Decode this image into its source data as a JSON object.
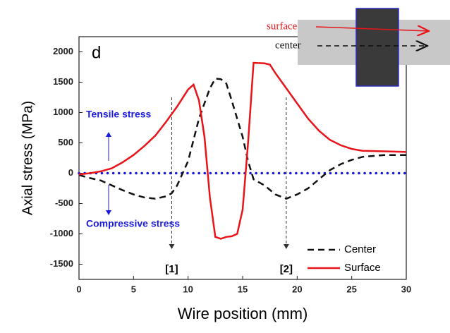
{
  "chart_data": {
    "type": "line",
    "panel_label": "d",
    "x_label": "Wire position (mm)",
    "y_label": "Axial stress (MPa)",
    "xlim": [
      0,
      30
    ],
    "xticks": [
      0,
      5,
      10,
      15,
      20,
      25,
      30
    ],
    "ylim": [
      -1750,
      2250
    ],
    "yticks": [
      -1500,
      -1000,
      -500,
      0,
      500,
      1000,
      1500,
      2000
    ],
    "reference_line": {
      "value": 0,
      "color": "#1a1adb"
    },
    "series": [
      {
        "name": "Center",
        "color": "#111111",
        "dash": true,
        "x": [
          0,
          1,
          2,
          3,
          4,
          5,
          6,
          7,
          8,
          8.5,
          9,
          10,
          11,
          12,
          12.5,
          13,
          13.5,
          14,
          15,
          15.5,
          16,
          17,
          18,
          19,
          20,
          21,
          22,
          23,
          24,
          25,
          26,
          28,
          30
        ],
        "values": [
          -30,
          -80,
          -120,
          -200,
          -280,
          -350,
          -400,
          -420,
          -380,
          -330,
          -200,
          200,
          900,
          1400,
          1560,
          1550,
          1480,
          1200,
          600,
          200,
          -100,
          -200,
          -350,
          -420,
          -350,
          -250,
          -100,
          50,
          150,
          220,
          270,
          300,
          300
        ]
      },
      {
        "name": "Surface",
        "color": "#e8141a",
        "dash": false,
        "x": [
          0,
          1,
          2,
          3,
          4,
          5,
          6,
          7,
          8,
          9,
          10,
          10.5,
          11,
          11.5,
          12,
          12.5,
          13,
          13.5,
          14,
          14.5,
          15,
          15.5,
          16,
          17,
          17.5,
          18,
          19,
          20,
          21,
          22,
          23,
          24,
          25,
          26,
          28,
          30
        ],
        "values": [
          -20,
          0,
          30,
          80,
          180,
          300,
          450,
          620,
          850,
          1100,
          1380,
          1460,
          1200,
          600,
          -400,
          -1050,
          -1080,
          -1050,
          -1040,
          -1000,
          -600,
          500,
          1820,
          1810,
          1790,
          1650,
          1400,
          1150,
          900,
          700,
          550,
          460,
          400,
          370,
          360,
          350
        ]
      }
    ],
    "markers": [
      {
        "label": "[1]",
        "x": 8.5
      },
      {
        "label": "[2]",
        "x": 19
      }
    ],
    "annotations": {
      "tensile": "Tensile stress",
      "compressive": "Compressive stress",
      "surface": "surface",
      "center": "center"
    }
  }
}
